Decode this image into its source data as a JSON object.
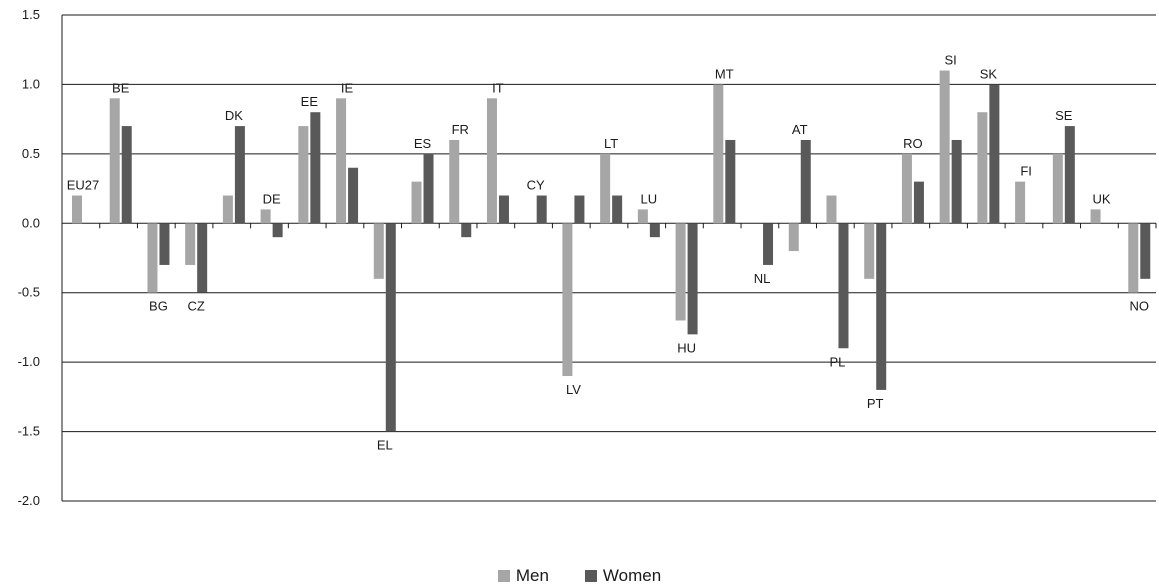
{
  "chart_data": {
    "type": "bar",
    "ylim": [
      -2.0,
      1.5
    ],
    "yticks": [
      "1.5",
      "1.0",
      "0.5",
      "0.0",
      "-0.5",
      "-1.0",
      "-1.5",
      "-2.0"
    ],
    "ytick_values": [
      1.5,
      1.0,
      0.5,
      0.0,
      -0.5,
      -1.0,
      -1.5,
      -2.0
    ],
    "grid": true,
    "legend_position": "bottom-center",
    "categories": [
      "EU27",
      "BE",
      "BG",
      "CZ",
      "DK",
      "DE",
      "EE",
      "IE",
      "EL",
      "ES",
      "FR",
      "IT",
      "CY",
      "LV",
      "LT",
      "LU",
      "HU",
      "MT",
      "NL",
      "AT",
      "PL",
      "PT",
      "RO",
      "SI",
      "SK",
      "FI",
      "SE",
      "UK",
      "NO"
    ],
    "series": [
      {
        "name": "Men",
        "color": "#a6a6a6",
        "values": [
          0.2,
          0.9,
          -0.5,
          -0.3,
          0.2,
          0.1,
          0.7,
          0.9,
          -0.4,
          0.3,
          0.6,
          0.9,
          null,
          -1.1,
          0.5,
          0.1,
          -0.7,
          1.0,
          null,
          -0.2,
          0.2,
          -0.4,
          0.5,
          1.1,
          0.8,
          0.3,
          0.5,
          0.1,
          -0.5
        ]
      },
      {
        "name": "Women",
        "color": "#595959",
        "values": [
          null,
          0.7,
          -0.3,
          -0.5,
          0.7,
          -0.1,
          0.8,
          0.4,
          -1.5,
          0.5,
          -0.1,
          0.2,
          0.2,
          0.2,
          0.2,
          -0.1,
          -0.8,
          0.6,
          -0.3,
          0.6,
          -0.9,
          -1.2,
          0.3,
          0.6,
          1.0,
          null,
          0.7,
          null,
          -0.4
        ]
      }
    ]
  },
  "legend": {
    "men_label": "Men",
    "women_label": "Women"
  }
}
